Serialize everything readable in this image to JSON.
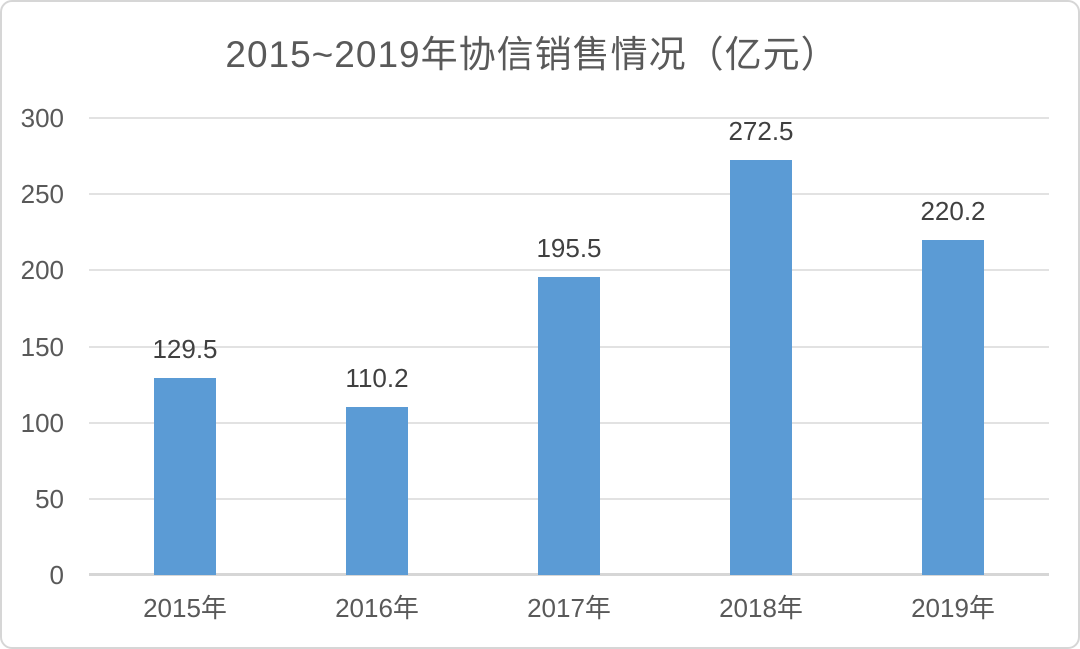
{
  "chart_data": {
    "type": "bar",
    "title": "2015~2019年协信销售情况（亿元）",
    "categories": [
      "2015年",
      "2016年",
      "2017年",
      "2018年",
      "2019年"
    ],
    "values": [
      129.5,
      110.2,
      195.5,
      272.5,
      220.2
    ],
    "value_labels": [
      "129.5",
      "110.2",
      "195.5",
      "272.5",
      "220.2"
    ],
    "xlabel": "",
    "ylabel": "",
    "ylim": [
      0,
      300
    ],
    "ytick_step": 50,
    "ytick_labels": [
      "0",
      "50",
      "100",
      "150",
      "200",
      "250",
      "300"
    ],
    "grid": true,
    "legend": "none",
    "colors": {
      "bar": "#5B9BD5",
      "title_text": "#595959",
      "tick_text": "#595959",
      "data_label_text": "#404040",
      "gridline": "#e2e2e2",
      "axis_line": "#d6d6d6",
      "frame_border": "#d6d6d6",
      "background": "#ffffff"
    }
  }
}
